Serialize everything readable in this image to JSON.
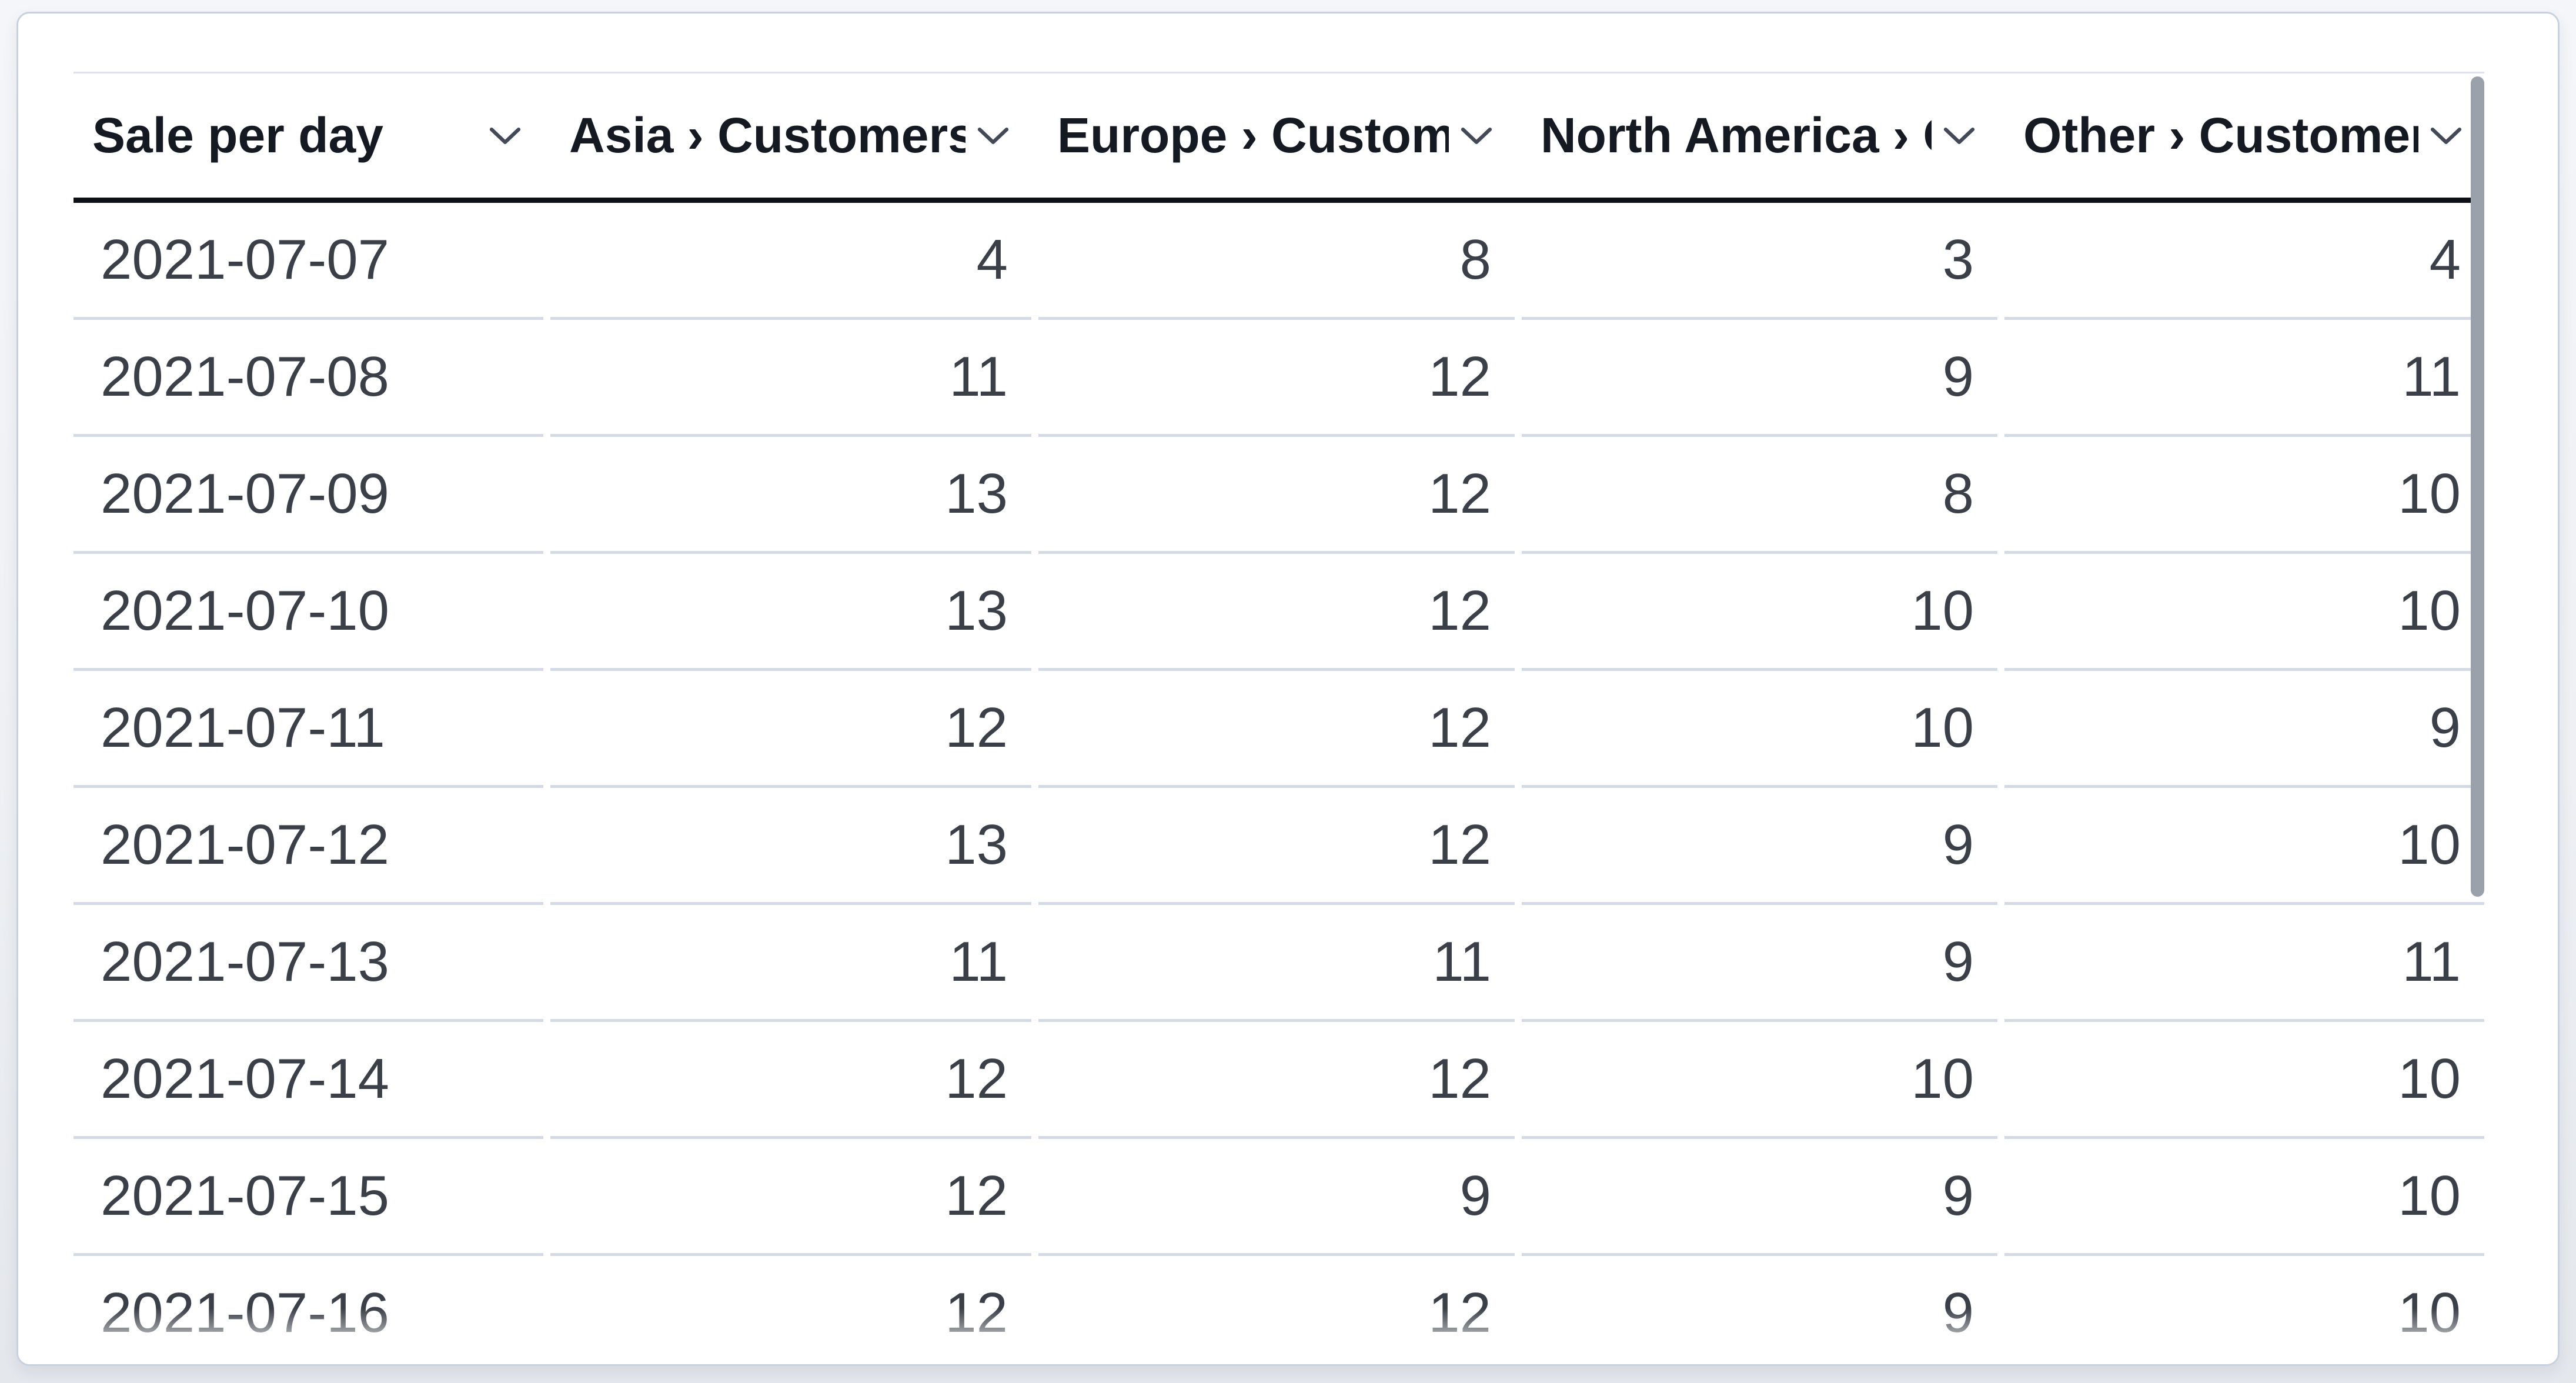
{
  "table": {
    "title": "Sale per day",
    "sort_icon": "chevron-down-icon",
    "columns": [
      {
        "id": "sale-per-day",
        "label": "Sale per day",
        "align": "left"
      },
      {
        "id": "asia-customers",
        "label": "Asia › Customers",
        "align": "right"
      },
      {
        "id": "europe-customers",
        "label": "Europe › Customers",
        "align": "right"
      },
      {
        "id": "north-america-customers",
        "label": "North America › Customers",
        "align": "right"
      },
      {
        "id": "other-customers",
        "label": "Other › Customers",
        "align": "right"
      }
    ],
    "rows": [
      [
        "2021-07-07",
        "4",
        "8",
        "3",
        "4"
      ],
      [
        "2021-07-08",
        "11",
        "12",
        "9",
        "11"
      ],
      [
        "2021-07-09",
        "13",
        "12",
        "8",
        "10"
      ],
      [
        "2021-07-10",
        "13",
        "12",
        "10",
        "10"
      ],
      [
        "2021-07-11",
        "12",
        "12",
        "10",
        "9"
      ],
      [
        "2021-07-12",
        "13",
        "12",
        "9",
        "10"
      ],
      [
        "2021-07-13",
        "11",
        "11",
        "9",
        "11"
      ],
      [
        "2021-07-14",
        "12",
        "12",
        "10",
        "10"
      ],
      [
        "2021-07-15",
        "12",
        "9",
        "9",
        "10"
      ],
      [
        "2021-07-16",
        "12",
        "12",
        "9",
        "10"
      ]
    ]
  },
  "chart_data": {
    "type": "table",
    "title": "Sale per day",
    "categories": [
      "2021-07-07",
      "2021-07-08",
      "2021-07-09",
      "2021-07-10",
      "2021-07-11",
      "2021-07-12",
      "2021-07-13",
      "2021-07-14",
      "2021-07-15",
      "2021-07-16"
    ],
    "series": [
      {
        "name": "Asia › Customers",
        "values": [
          4,
          11,
          13,
          13,
          12,
          13,
          11,
          12,
          12,
          12
        ]
      },
      {
        "name": "Europe › Customers",
        "values": [
          8,
          12,
          12,
          12,
          12,
          12,
          11,
          12,
          9,
          12
        ]
      },
      {
        "name": "North America › Customers",
        "values": [
          3,
          9,
          8,
          10,
          10,
          9,
          9,
          10,
          9,
          9
        ]
      },
      {
        "name": "Other › Customers",
        "values": [
          4,
          11,
          10,
          10,
          9,
          10,
          11,
          10,
          10,
          10
        ]
      }
    ]
  },
  "scrollbar": {
    "orientation": "vertical",
    "thumb_visible": true
  },
  "colors": {
    "card_background": "#ffffff",
    "card_border": "#c8d1de",
    "header_text": "#151922",
    "header_rule": "#0d1117",
    "body_text": "#3b3f48",
    "row_separator": "#d3dae6",
    "scrollbar_thumb": "#9ba1ab",
    "page_background_top": "#f5f6f9",
    "page_background_bottom": "#e4e7ec"
  }
}
